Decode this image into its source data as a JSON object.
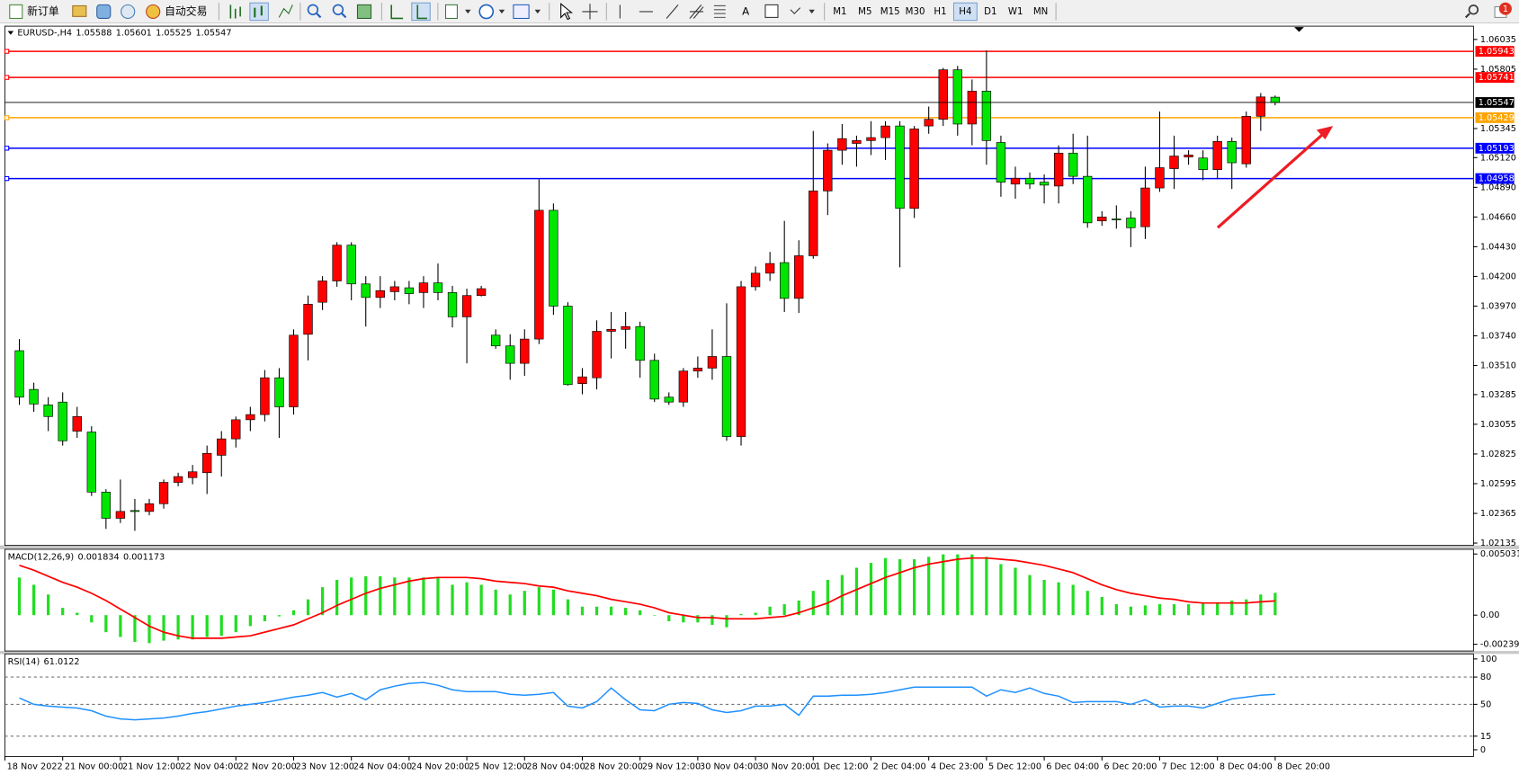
{
  "toolbar": {
    "new_order": "新订单",
    "auto_trading": "自动交易",
    "text_tool": "A",
    "timeframes": [
      "M1",
      "M5",
      "M15",
      "M30",
      "H1",
      "H4",
      "D1",
      "W1",
      "MN"
    ],
    "active_timeframe_index": 5,
    "notification_count": 1
  },
  "chart_data": [
    {
      "type": "candlestick",
      "symbol": "EURUSD-,H4",
      "up_color": "#ff0000",
      "down_color": "#00e600",
      "candles": [
        [
          1.03625,
          1.03715,
          1.03205,
          1.03265
        ],
        [
          1.03325,
          1.03377,
          1.03152,
          1.03212
        ],
        [
          1.03205,
          1.03265,
          1.03002,
          1.03115
        ],
        [
          1.03227,
          1.03302,
          1.0289,
          1.02927
        ],
        [
          1.03002,
          1.0319,
          1.0295,
          1.03115
        ],
        [
          1.02995,
          1.0304,
          1.025,
          1.0253
        ],
        [
          1.0253,
          1.02552,
          1.02245,
          1.02327
        ],
        [
          1.02327,
          1.02627,
          1.0229,
          1.0238
        ],
        [
          1.02387,
          1.02477,
          1.0223,
          1.02385
        ],
        [
          1.0238,
          1.02477,
          1.0235,
          1.0244
        ],
        [
          1.0244,
          1.02627,
          1.02402,
          1.02605
        ],
        [
          1.02605,
          1.0268,
          1.02575,
          1.0265
        ],
        [
          1.02642,
          1.0274,
          1.0259,
          1.02687
        ],
        [
          1.0268,
          1.0289,
          1.02515,
          1.0283
        ],
        [
          1.02815,
          1.03002,
          1.0265,
          1.02942
        ],
        [
          1.02942,
          1.03115,
          1.02875,
          1.0309
        ],
        [
          1.0309,
          1.0319,
          1.03002,
          1.0313
        ],
        [
          1.0313,
          1.03475,
          1.03077,
          1.03415
        ],
        [
          1.03415,
          1.0349,
          1.0295,
          1.0319
        ],
        [
          1.0319,
          1.0379,
          1.0313,
          1.03745
        ],
        [
          1.03752,
          1.04052,
          1.0355,
          1.03985
        ],
        [
          1.04,
          1.04202,
          1.0394,
          1.04165
        ],
        [
          1.04165,
          1.04465,
          1.0412,
          1.04442
        ],
        [
          1.04442,
          1.04465,
          1.04015,
          1.04142
        ],
        [
          1.04142,
          1.04202,
          1.03812,
          1.04037
        ],
        [
          1.04037,
          1.04202,
          1.03955,
          1.0409
        ],
        [
          1.04082,
          1.04165,
          1.04015,
          1.0412
        ],
        [
          1.04112,
          1.04165,
          1.03985,
          1.04067
        ],
        [
          1.04075,
          1.04202,
          1.03955,
          1.0415
        ],
        [
          1.0415,
          1.043,
          1.04015,
          1.04075
        ],
        [
          1.04075,
          1.04127,
          1.03805,
          1.03887
        ],
        [
          1.03887,
          1.04105,
          1.03527,
          1.04052
        ],
        [
          1.04052,
          1.04127,
          1.04045,
          1.04105
        ],
        [
          1.03745,
          1.0379,
          1.0364,
          1.03662
        ],
        [
          1.03662,
          1.03752,
          1.034,
          1.03527
        ],
        [
          1.03527,
          1.0379,
          1.0343,
          1.03715
        ],
        [
          1.03715,
          1.04952,
          1.03677,
          1.04712
        ],
        [
          1.04712,
          1.04765,
          1.03902,
          1.0397
        ],
        [
          1.0397,
          1.04,
          1.03355,
          1.03362
        ],
        [
          1.0337,
          1.0349,
          1.03287,
          1.03422
        ],
        [
          1.03415,
          1.0386,
          1.03325,
          1.03775
        ],
        [
          1.03775,
          1.03925,
          1.03565,
          1.0379
        ],
        [
          1.0379,
          1.03925,
          1.0364,
          1.03812
        ],
        [
          1.03812,
          1.0385,
          1.03415,
          1.0355
        ],
        [
          1.0355,
          1.03602,
          1.03227,
          1.0325
        ],
        [
          1.03265,
          1.03302,
          1.03205,
          1.03227
        ],
        [
          1.03227,
          1.0349,
          1.0319,
          1.03467
        ],
        [
          1.03467,
          1.0358,
          1.03415,
          1.0349
        ],
        [
          1.0349,
          1.0379,
          1.034,
          1.0358
        ],
        [
          1.0358,
          1.03992,
          1.02927,
          1.0296
        ],
        [
          1.0296,
          1.04165,
          1.0289,
          1.0412
        ],
        [
          1.0412,
          1.04277,
          1.0409,
          1.04225
        ],
        [
          1.04225,
          1.0439,
          1.04165,
          1.043
        ],
        [
          1.04307,
          1.0463,
          1.03925,
          1.0403
        ],
        [
          1.0403,
          1.0448,
          1.03917,
          1.0436
        ],
        [
          1.0436,
          1.05327,
          1.04337,
          1.04862
        ],
        [
          1.04862,
          1.0523,
          1.04675,
          1.05177
        ],
        [
          1.05177,
          1.0538,
          1.05065,
          1.05267
        ],
        [
          1.0523,
          1.0529,
          1.0505,
          1.05252
        ],
        [
          1.05252,
          1.05402,
          1.0514,
          1.05275
        ],
        [
          1.05275,
          1.05402,
          1.05102,
          1.05365
        ],
        [
          1.05365,
          1.05402,
          1.0427,
          1.04727
        ],
        [
          1.04727,
          1.05365,
          1.04652,
          1.05342
        ],
        [
          1.05365,
          1.05515,
          1.05305,
          1.05417
        ],
        [
          1.05417,
          1.05815,
          1.05365,
          1.058
        ],
        [
          1.058,
          1.0583,
          1.0529,
          1.0538
        ],
        [
          1.0538,
          1.05725,
          1.05215,
          1.05635
        ],
        [
          1.05635,
          1.0595,
          1.05065,
          1.05252
        ],
        [
          1.05237,
          1.0529,
          1.04817,
          1.0493
        ],
        [
          1.04915,
          1.0505,
          1.04802,
          1.0496
        ],
        [
          1.0496,
          1.05005,
          1.04877,
          1.04915
        ],
        [
          1.0493,
          1.0499,
          1.04765,
          1.04907
        ],
        [
          1.049,
          1.05215,
          1.04765,
          1.05155
        ],
        [
          1.05155,
          1.05305,
          1.04915,
          1.04975
        ],
        [
          1.04975,
          1.0529,
          1.04577,
          1.04615
        ],
        [
          1.0463,
          1.04705,
          1.04592,
          1.0466
        ],
        [
          1.04645,
          1.0475,
          1.0457,
          1.04643
        ],
        [
          1.04652,
          1.04705,
          1.04427,
          1.04577
        ],
        [
          1.04585,
          1.0505,
          1.0449,
          1.04885
        ],
        [
          1.04885,
          1.05477,
          1.04855,
          1.05042
        ],
        [
          1.05035,
          1.0529,
          1.04877,
          1.05132
        ],
        [
          1.05125,
          1.05177,
          1.05065,
          1.0514
        ],
        [
          1.05117,
          1.05177,
          1.04945,
          1.05027
        ],
        [
          1.05027,
          1.0529,
          1.04952,
          1.05245
        ],
        [
          1.05245,
          1.05275,
          1.04877,
          1.0508
        ],
        [
          1.05072,
          1.05477,
          1.05042,
          1.0544
        ],
        [
          1.0544,
          1.0562,
          1.05327,
          1.0559
        ],
        [
          1.05588,
          1.05601,
          1.05525,
          1.05547
        ]
      ],
      "ylim": [
        1.02117,
        1.06138
      ],
      "yticks": [
        1.06035,
        1.05805,
        1.05345,
        {
          "value": 1.0512,
          "label": "1.05120"
        },
        {
          "value": 1.0489,
          "label": "1.04890"
        },
        {
          "value": 1.0466,
          "label": "1.04660"
        },
        {
          "value": 1.0443,
          "label": "1.04430"
        },
        {
          "value": 1.042,
          "label": "1.04200"
        },
        {
          "value": 1.0397,
          "label": "1.03970"
        },
        {
          "value": 1.0374,
          "label": "1.03740"
        },
        {
          "value": 1.0351,
          "label": "1.03510"
        },
        1.03285,
        1.03055,
        1.02825,
        1.02595,
        1.02365,
        1.02135
      ],
      "levels": [
        {
          "value": 1.05943,
          "color": "#ff0000"
        },
        {
          "value": 1.05741,
          "color": "#ff0000"
        },
        {
          "value": 1.05429,
          "color": "#ffa500"
        },
        {
          "value": 1.05193,
          "color": "#0000ff"
        },
        {
          "value": 1.04958,
          "color": "#0000ff"
        }
      ],
      "current_price_color": "#000000",
      "x_labels": [
        "18 Nov 2022",
        "21 Nov 00:00",
        "21 Nov 12:00",
        "22 Nov 04:00",
        "22 Nov 20:00",
        "23 Nov 12:00",
        "24 Nov 04:00",
        "24 Nov 20:00",
        "25 Nov 12:00",
        "28 Nov 04:00",
        "28 Nov 20:00",
        "29 Nov 12:00",
        "30 Nov 04:00",
        "30 Nov 20:00",
        "1 Dec 12:00",
        "2 Dec 04:00",
        "4 Dec 23:00",
        "5 Dec 12:00",
        "6 Dec 04:00",
        "6 Dec 20:00",
        "7 Dec 12:00",
        "8 Dec 04:00",
        "8 Dec 20:00"
      ]
    },
    {
      "type": "macd",
      "name": "MACD(12,26,9)",
      "histogram_color": "#22dd22",
      "signal_color": "#ff0000",
      "histogram": [
        0.0031,
        0.0025,
        0.0017,
        0.0006,
        0.0002,
        -0.0006,
        -0.0014,
        -0.0018,
        -0.0022,
        -0.0023,
        -0.0021,
        -0.002,
        -0.002,
        -0.0018,
        -0.0017,
        -0.0014,
        -0.0009,
        -0.0005,
        -0.0001,
        0.0004,
        0.0013,
        0.0023,
        0.0029,
        0.0031,
        0.0032,
        0.0032,
        0.0031,
        0.0031,
        0.0031,
        0.0031,
        0.0025,
        0.0027,
        0.0025,
        0.0021,
        0.0017,
        0.002,
        0.0023,
        0.0021,
        0.0013,
        0.0007,
        0.0007,
        0.0007,
        0.0006,
        0.0004,
        0,
        -0.0005,
        -0.0006,
        -0.0006,
        -0.0008,
        -0.001,
        0.0001,
        0.0002,
        0.0007,
        0.0009,
        0.0012,
        0.002,
        0.0029,
        0.0033,
        0.0039,
        0.0043,
        0.0047,
        0.0046,
        0.0046,
        0.0048,
        0.005,
        0.005,
        0.005,
        0.0048,
        0.0042,
        0.0039,
        0.0033,
        0.0029,
        0.0027,
        0.0025,
        0.002,
        0.0015,
        0.0009,
        0.0007,
        0.0008,
        0.0009,
        0.0009,
        0.0009,
        0.001,
        0.001,
        0.0012,
        0.0013,
        0.0017,
        0.001834
      ],
      "signal": [
        0.0041,
        0.0037,
        0.0032,
        0.0027,
        0.0023,
        0.0018,
        0.0012,
        0.0005,
        -0.0002,
        -0.0009,
        -0.0014,
        -0.0017,
        -0.0019,
        -0.0019,
        -0.0019,
        -0.0018,
        -0.0017,
        -0.0014,
        -0.0011,
        -0.0008,
        -0.0003,
        0.0002,
        0.0008,
        0.0013,
        0.0018,
        0.0022,
        0.0025,
        0.0028,
        0.003,
        0.0031,
        0.0031,
        0.0031,
        0.003,
        0.0028,
        0.0027,
        0.0026,
        0.0024,
        0.0023,
        0.002,
        0.0018,
        0.0016,
        0.0013,
        0.0011,
        0.0009,
        0.0006,
        0.0002,
        0,
        -0.0002,
        -0.0002,
        -0.0003,
        -0.0003,
        -0.0003,
        -0.0002,
        -0.0001,
        0.0002,
        0.0006,
        0.001,
        0.0016,
        0.0021,
        0.0026,
        0.0031,
        0.0035,
        0.0039,
        0.0042,
        0.0044,
        0.0046,
        0.0047,
        0.0047,
        0.0046,
        0.0045,
        0.0043,
        0.0041,
        0.0038,
        0.0035,
        0.003,
        0.0025,
        0.0021,
        0.0018,
        0.0016,
        0.0014,
        0.0013,
        0.0011,
        0.001,
        0.001,
        0.001,
        0.001,
        0.0011,
        0.001173
      ],
      "ylim": [
        -0.00295,
        0.00542
      ],
      "yticks": [
        0.005031,
        {
          "value": 0,
          "label": "0.00"
        },
        -0.002397
      ]
    },
    {
      "type": "rsi",
      "name": "RSI(14)",
      "color": "#1e90ff",
      "values": [
        57,
        50,
        48,
        47,
        46,
        43,
        37,
        34,
        33,
        34,
        35,
        37,
        40,
        42,
        45,
        48,
        50,
        52,
        55,
        58,
        60,
        63,
        58,
        62,
        55,
        66,
        70,
        73,
        74,
        71,
        66,
        64,
        64,
        64,
        61,
        60,
        61,
        63,
        48,
        46,
        53,
        68,
        55,
        44,
        43,
        50,
        52,
        51,
        44,
        41,
        43,
        48,
        48,
        50,
        38,
        59,
        59,
        60,
        60,
        61,
        63,
        66,
        69,
        69,
        69,
        69,
        69,
        59,
        66,
        63,
        68,
        62,
        59,
        52,
        53,
        53,
        53,
        50,
        55,
        47,
        48,
        48,
        46,
        51,
        56,
        58,
        60,
        61.0122
      ],
      "ylim": [
        -7.5,
        105.5
      ],
      "yticks": [
        100,
        80,
        50,
        15,
        0
      ]
    }
  ]
}
